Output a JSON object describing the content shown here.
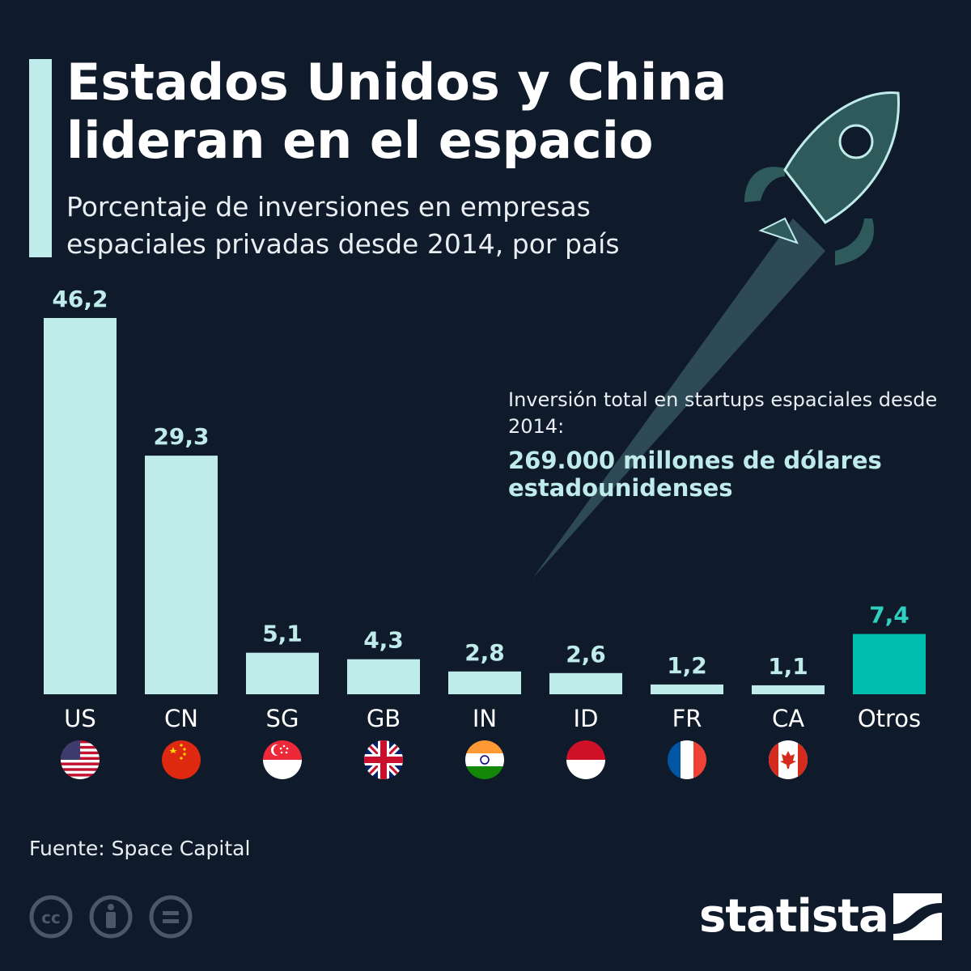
{
  "header": {
    "title": "Estados Unidos y China lideran en el espacio",
    "subtitle": "Porcentaje de inversiones en empresas espaciales privadas desde 2014, por país"
  },
  "annotation": {
    "text": "Inversión total en startups espaciales desde 2014:",
    "value": "269.000 millones de dólares estadounidenses"
  },
  "chart_data": {
    "type": "bar",
    "title": "Estados Unidos y China lideran en el espacio",
    "subtitle": "Porcentaje de inversiones en empresas espaciales privadas desde 2014, por país",
    "categories": [
      "US",
      "CN",
      "SG",
      "GB",
      "IN",
      "ID",
      "FR",
      "CA",
      "Otros"
    ],
    "values": [
      46.2,
      29.3,
      5.1,
      4.3,
      2.8,
      2.6,
      1.2,
      1.1,
      7.4
    ],
    "value_labels": [
      "46,2",
      "29,3",
      "5,1",
      "4,3",
      "2,8",
      "2,6",
      "1,2",
      "1,1",
      "7,4"
    ],
    "xlabel": "",
    "ylabel": "",
    "ylim": [
      0,
      46.2
    ],
    "grid": false,
    "highlight_category": "Otros",
    "flags": [
      "us-flag-icon",
      "cn-flag-icon",
      "sg-flag-icon",
      "gb-flag-icon",
      "in-flag-icon",
      "id-flag-icon",
      "fr-flag-icon",
      "ca-flag-icon"
    ]
  },
  "colors": {
    "background": "#0f1a2b",
    "bar": "#bfecea",
    "highlight_bar": "#00bfae",
    "highlight_label": "#2fd0c0",
    "rocket": "#2f5a5c"
  },
  "footer": {
    "source": "Fuente: Space Capital",
    "brand": "statista",
    "icons": [
      "creative-commons-icon",
      "attribution-icon",
      "no-derivatives-icon"
    ]
  }
}
